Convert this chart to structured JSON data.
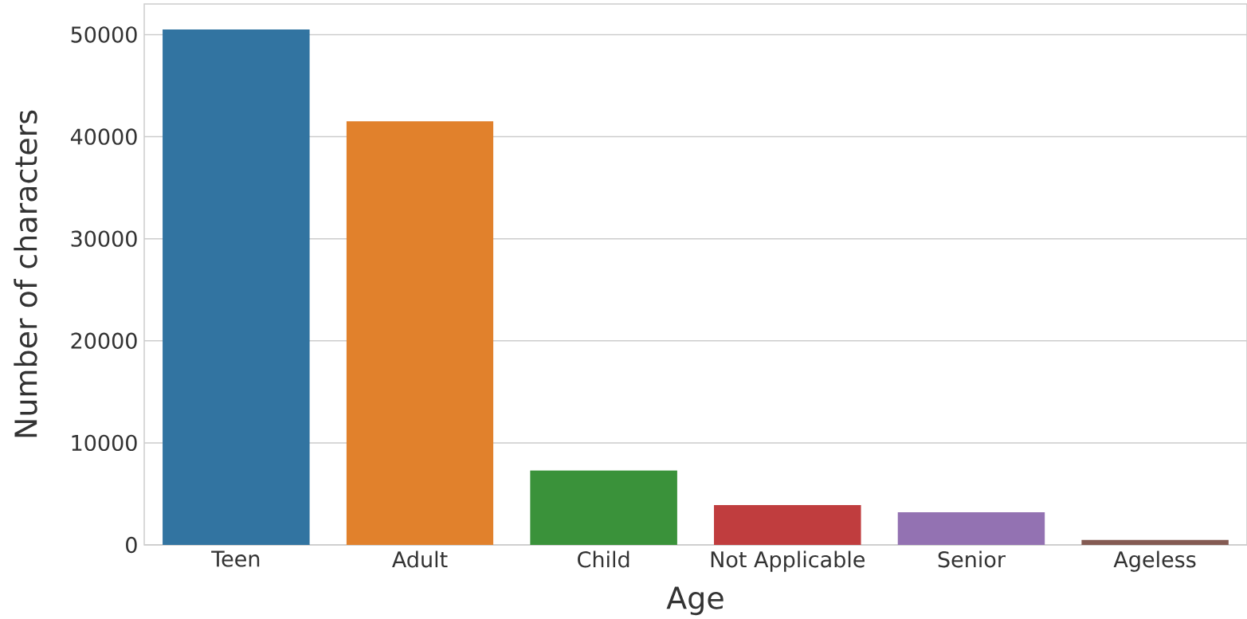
{
  "chart_data": {
    "type": "bar",
    "xlabel": "Age",
    "ylabel": "Number of characters",
    "categories": [
      "Teen",
      "Adult",
      "Child",
      "Not Applicable",
      "Senior",
      "Ageless"
    ],
    "values": [
      50500,
      41500,
      7300,
      3900,
      3200,
      500
    ],
    "colors": [
      "#3274a1",
      "#e1812c",
      "#3a923a",
      "#c03d3e",
      "#9372b2",
      "#845b53"
    ],
    "ylim": [
      0,
      53000
    ],
    "yticks": [
      0,
      10000,
      20000,
      30000,
      40000,
      50000
    ],
    "grid": "y"
  }
}
